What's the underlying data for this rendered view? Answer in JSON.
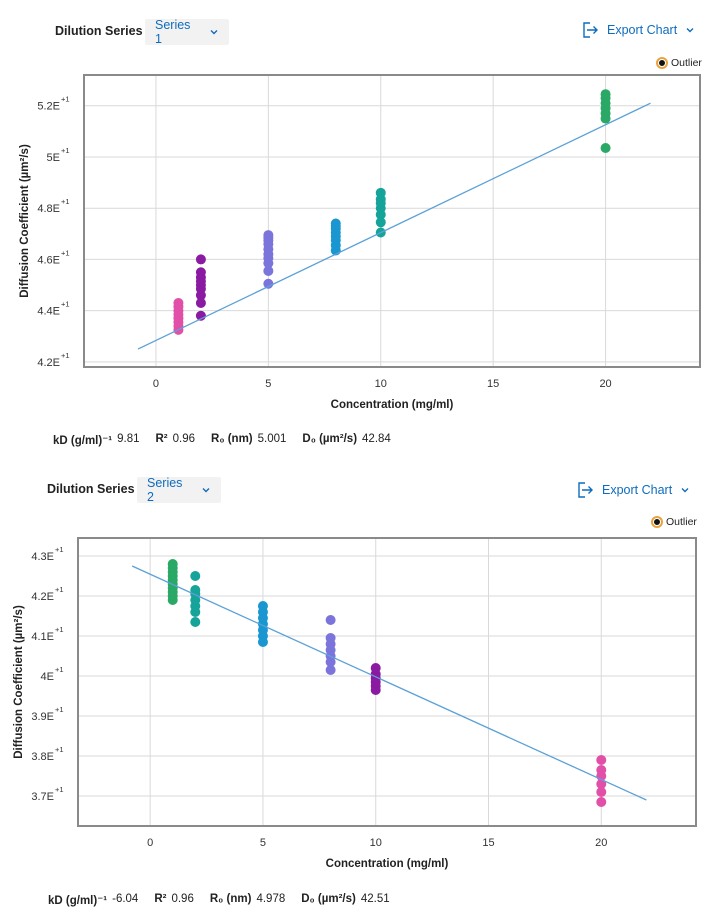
{
  "chart_data": [
    {
      "type": "scatter",
      "header": {
        "label": "Dilution Series",
        "selected": "Series 1",
        "export_label": "Export Chart",
        "legend_outlier": "Outlier"
      },
      "xlabel": "Concentration (mg/ml)",
      "ylabel": "Diffusion Coefficient (µm²/s)",
      "xlim": [
        -3.2,
        24.2
      ],
      "ylim": [
        41.8,
        53.2
      ],
      "xticks": [
        0,
        5,
        10,
        15,
        20
      ],
      "yticks": [
        {
          "value": 42,
          "mantissa": "4.2E",
          "exp": "+1"
        },
        {
          "value": 44,
          "mantissa": "4.4E",
          "exp": "+1"
        },
        {
          "value": 46,
          "mantissa": "4.6E",
          "exp": "+1"
        },
        {
          "value": 48,
          "mantissa": "4.8E",
          "exp": "+1"
        },
        {
          "value": 50,
          "mantissa": "5E",
          "exp": "+1"
        },
        {
          "value": 52,
          "mantissa": "5.2E",
          "exp": "+1"
        }
      ],
      "fit_line": {
        "x": [
          -0.8,
          22.0
        ],
        "y": [
          42.5,
          52.1
        ],
        "color": "#5aa1d8"
      },
      "series": [
        {
          "x": 1,
          "color": "#e24fa8",
          "values": [
            43.25,
            43.4,
            43.55,
            43.7,
            43.85,
            44.0,
            44.15,
            44.3
          ]
        },
        {
          "x": 2,
          "color": "#8b1aa3",
          "values": [
            43.8,
            44.3,
            44.6,
            44.85,
            45.0,
            45.15,
            45.3,
            45.5,
            46.0
          ]
        },
        {
          "x": 5,
          "color": "#7b74db",
          "values": [
            45.05,
            45.55,
            45.85,
            46.05,
            46.2,
            46.4,
            46.6,
            46.75,
            46.85,
            46.95
          ]
        },
        {
          "x": 8,
          "color": "#1a96d0",
          "values": [
            46.35,
            46.55,
            46.75,
            46.9,
            47.05,
            47.2,
            47.3,
            47.4
          ]
        },
        {
          "x": 10,
          "color": "#16a399",
          "values": [
            47.05,
            47.45,
            47.75,
            48.0,
            48.2,
            48.35,
            48.6
          ]
        },
        {
          "x": 20,
          "color": "#2aa865",
          "values": [
            50.35,
            51.5,
            51.7,
            51.9,
            52.1,
            52.3,
            52.45
          ]
        }
      ],
      "stats": {
        "kd_label": "kD (g/ml)⁻¹",
        "kd": "9.81",
        "r2_label": "R²",
        "r2": "0.96",
        "r0_label": "R₀ (nm)",
        "r0": "5.001",
        "d0_label": "D₀ (µm²/s)",
        "d0": "42.84"
      }
    },
    {
      "type": "scatter",
      "header": {
        "label": "Dilution Series",
        "selected": "Series 2",
        "export_label": "Export Chart",
        "legend_outlier": "Outlier"
      },
      "xlabel": "Concentration (mg/ml)",
      "ylabel": "Diffusion Coefficient (µm²/s)",
      "xlim": [
        -3.2,
        24.2
      ],
      "ylim": [
        36.25,
        43.45
      ],
      "xticks": [
        0,
        5,
        10,
        15,
        20
      ],
      "yticks": [
        {
          "value": 37,
          "mantissa": "3.7E",
          "exp": "+1"
        },
        {
          "value": 38,
          "mantissa": "3.8E",
          "exp": "+1"
        },
        {
          "value": 39,
          "mantissa": "3.9E",
          "exp": "+1"
        },
        {
          "value": 40,
          "mantissa": "4E",
          "exp": "+1"
        },
        {
          "value": 41,
          "mantissa": "4.1E",
          "exp": "+1"
        },
        {
          "value": 42,
          "mantissa": "4.2E",
          "exp": "+1"
        },
        {
          "value": 43,
          "mantissa": "4.3E",
          "exp": "+1"
        }
      ],
      "fit_line": {
        "x": [
          -0.8,
          22.0
        ],
        "y": [
          42.75,
          36.9
        ],
        "color": "#5aa1d8"
      },
      "series": [
        {
          "x": 1,
          "color": "#2aa865",
          "values": [
            41.9,
            42.0,
            42.1,
            42.2,
            42.3,
            42.4,
            42.5,
            42.6,
            42.7,
            42.8
          ]
        },
        {
          "x": 2,
          "color": "#16a399",
          "values": [
            41.35,
            41.6,
            41.75,
            41.9,
            42.05,
            42.15,
            42.5
          ]
        },
        {
          "x": 5,
          "color": "#1a96d0",
          "values": [
            40.85,
            41.0,
            41.15,
            41.3,
            41.45,
            41.6,
            41.75
          ]
        },
        {
          "x": 8,
          "color": "#7b74db",
          "values": [
            40.15,
            40.35,
            40.5,
            40.65,
            40.8,
            40.95,
            41.4
          ]
        },
        {
          "x": 10,
          "color": "#8b1aa3",
          "values": [
            39.65,
            39.75,
            39.85,
            39.95,
            40.05,
            40.2
          ]
        },
        {
          "x": 20,
          "color": "#e24fa8",
          "values": [
            36.85,
            37.1,
            37.3,
            37.5,
            37.65,
            37.9
          ]
        }
      ],
      "stats": {
        "kd_label": "kD (g/ml)⁻¹",
        "kd": "-6.04",
        "r2_label": "R²",
        "r2": "0.96",
        "r0_label": "R₀ (nm)",
        "r0": "4.978",
        "d0_label": "D₀ (µm²/s)",
        "d0": "42.51"
      }
    }
  ]
}
